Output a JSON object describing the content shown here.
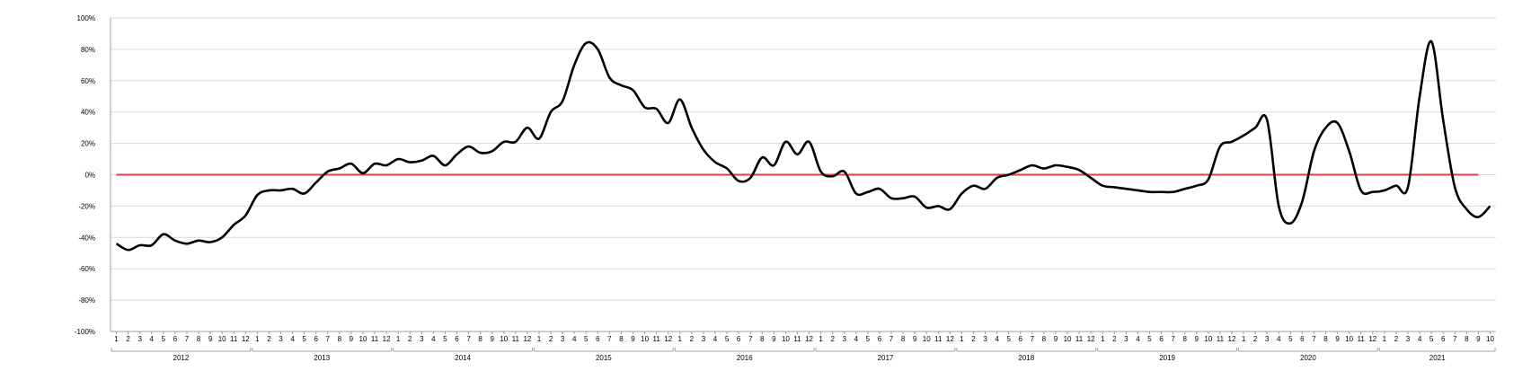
{
  "chart_data": {
    "type": "line",
    "title": "",
    "xlabel": "",
    "ylabel": "",
    "ylim": [
      -100,
      100
    ],
    "y_ticks": [
      "100%",
      "80%",
      "60%",
      "40%",
      "20%",
      "0%",
      "-20%",
      "-40%",
      "-60%",
      "-80%",
      "-100%"
    ],
    "y_tick_values": [
      100,
      80,
      60,
      40,
      20,
      0,
      -20,
      -40,
      -60,
      -80,
      -100
    ],
    "years": [
      "2012",
      "2013",
      "2014",
      "2015",
      "2016",
      "2017",
      "2018",
      "2019",
      "2020",
      "2021"
    ],
    "month_labels": [
      "1",
      "2",
      "3",
      "4",
      "5",
      "6",
      "7",
      "8",
      "9",
      "10",
      "11",
      "12"
    ],
    "grid": true,
    "colors": {
      "series": "#000000",
      "zero_line": "#e04040",
      "grid": "#d9d9d9",
      "axis": "#a0a0a0"
    },
    "series": [
      {
        "values": [
          -44,
          -48,
          -45,
          -45,
          -38,
          -42,
          -44,
          -42,
          -43,
          -40,
          -32,
          -26,
          -13,
          -10,
          -10,
          -9,
          -12,
          -5,
          2,
          4,
          7,
          1,
          7,
          6,
          10,
          8,
          9,
          12,
          6,
          13,
          18,
          14,
          15,
          21,
          21,
          30,
          23,
          40,
          47,
          70,
          84,
          80,
          62,
          57,
          54,
          43,
          42,
          33,
          48,
          30,
          16,
          8,
          4,
          -4,
          -2,
          11,
          6,
          21,
          13,
          21,
          2,
          -1,
          2,
          -12,
          -11,
          -9,
          -15,
          -15,
          -14,
          -21,
          -20,
          -22,
          -12,
          -7,
          -9,
          -2,
          0,
          3,
          6,
          4,
          6,
          5,
          3,
          -2,
          -7,
          -8,
          -9,
          -10,
          -11,
          -11,
          -11,
          -9,
          -7,
          -3,
          18,
          21,
          25,
          30,
          35,
          -20,
          -31,
          -17,
          15,
          30,
          33,
          15,
          -10,
          -11,
          -10,
          -7,
          -8,
          50,
          85,
          35,
          -8,
          -22,
          -27,
          -20
        ]
      },
      {
        "values": [
          0,
          0,
          0,
          0,
          0,
          0,
          0,
          0,
          0,
          0,
          0,
          0,
          0,
          0,
          0,
          0,
          0,
          0,
          0,
          0,
          0,
          0,
          0,
          0,
          0,
          0,
          0,
          0,
          0,
          0,
          0,
          0,
          0,
          0,
          0,
          0,
          0,
          0,
          0,
          0,
          0,
          0,
          0,
          0,
          0,
          0,
          0,
          0,
          0,
          0,
          0,
          0,
          0,
          0,
          0,
          0,
          0,
          0,
          0,
          0,
          0,
          0,
          0,
          0,
          0,
          0,
          0,
          0,
          0,
          0,
          0,
          0,
          0,
          0,
          0,
          0,
          0,
          0,
          0,
          0,
          0,
          0,
          0,
          0,
          0,
          0,
          0,
          0,
          0,
          0,
          0,
          0,
          0,
          0,
          0,
          0,
          0,
          0,
          0,
          0,
          0,
          0,
          0,
          0,
          0,
          0,
          0,
          0,
          0,
          0,
          0,
          0,
          0,
          0,
          0,
          0,
          0
        ]
      }
    ]
  }
}
